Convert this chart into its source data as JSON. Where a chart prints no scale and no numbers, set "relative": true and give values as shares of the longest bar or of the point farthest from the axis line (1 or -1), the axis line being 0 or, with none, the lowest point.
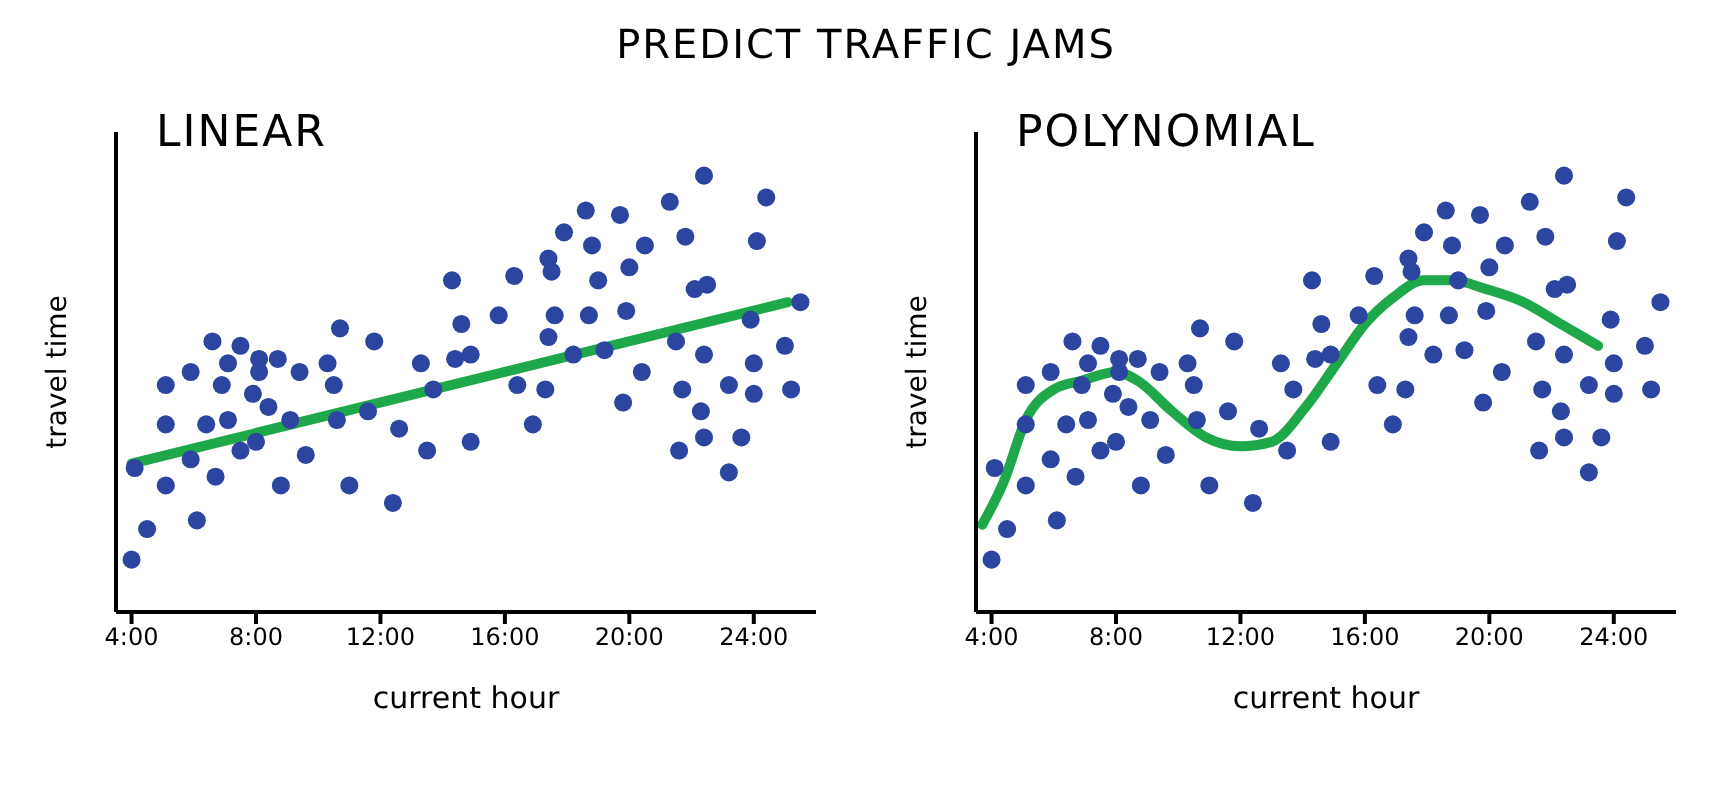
{
  "chart_data": [
    {
      "type": "scatter",
      "title": "LINEAR",
      "annotations": [
        "PREDICT TRAFFIC JAMS"
      ],
      "xlabel": "current hour",
      "ylabel": "travel time",
      "relative": true,
      "grid": false,
      "xlim": [
        3.5,
        26
      ],
      "xticks": [
        {
          "value": 4,
          "label": "4:00"
        },
        {
          "value": 8,
          "label": "8:00"
        },
        {
          "value": 12,
          "label": "12:00"
        },
        {
          "value": 16,
          "label": "16:00"
        },
        {
          "value": 20,
          "label": "20:00"
        },
        {
          "value": 24,
          "label": "24:00"
        }
      ],
      "series": [
        {
          "marker": "circle",
          "color": "#2b45a0",
          "x": [
            4.0,
            4.1,
            4.5,
            5.1,
            5.1,
            5.1,
            5.9,
            5.9,
            6.1,
            6.4,
            6.6,
            6.7,
            6.9,
            7.1,
            7.1,
            7.5,
            7.5,
            7.9,
            8.0,
            8.1,
            8.1,
            8.4,
            8.7,
            8.8,
            9.1,
            9.4,
            9.6,
            10.3,
            10.5,
            10.6,
            10.7,
            11.0,
            11.6,
            11.8,
            12.4,
            12.6,
            13.3,
            13.5,
            13.7,
            14.3,
            14.4,
            14.6,
            14.9,
            14.9,
            15.8,
            16.3,
            16.4,
            16.9,
            17.3,
            17.4,
            17.4,
            17.5,
            17.6,
            17.9,
            18.2,
            18.6,
            18.7,
            18.8,
            19.0,
            19.2,
            19.7,
            19.8,
            19.9,
            20.0,
            20.4,
            20.5,
            21.3,
            21.5,
            21.6,
            21.7,
            21.8,
            22.1,
            22.3,
            22.4,
            22.4,
            22.5,
            22.4,
            23.2,
            23.2,
            23.6,
            23.9,
            24.0,
            24.0,
            24.1,
            24.4,
            25.0,
            25.2,
            25.5
          ],
          "values": [
            0.12,
            0.33,
            0.19,
            0.52,
            0.43,
            0.29,
            0.35,
            0.55,
            0.21,
            0.43,
            0.62,
            0.31,
            0.52,
            0.57,
            0.44,
            0.37,
            0.61,
            0.5,
            0.39,
            0.58,
            0.55,
            0.47,
            0.58,
            0.29,
            0.44,
            0.55,
            0.36,
            0.57,
            0.52,
            0.44,
            0.65,
            0.29,
            0.46,
            0.62,
            0.25,
            0.42,
            0.57,
            0.37,
            0.51,
            0.76,
            0.58,
            0.66,
            0.39,
            0.59,
            0.68,
            0.77,
            0.52,
            0.43,
            0.51,
            0.63,
            0.81,
            0.78,
            0.68,
            0.87,
            0.59,
            0.92,
            0.68,
            0.84,
            0.76,
            0.6,
            0.91,
            0.48,
            0.69,
            0.79,
            0.55,
            0.84,
            0.94,
            0.62,
            0.37,
            0.51,
            0.86,
            0.74,
            0.46,
            0.4,
            1.0,
            0.75,
            0.59,
            0.52,
            0.32,
            0.4,
            0.67,
            0.57,
            0.5,
            0.85,
            0.95,
            0.61,
            0.51,
            0.71
          ]
        },
        {
          "type": "line",
          "color": "#1fa84a",
          "x": [
            4.0,
            25.1
          ],
          "values": [
            0.34,
            0.71
          ]
        }
      ]
    },
    {
      "type": "scatter",
      "title": "POLYNOMIAL",
      "xlabel": "current hour",
      "ylabel": "travel time",
      "relative": true,
      "grid": false,
      "xlim": [
        3.5,
        26
      ],
      "xticks": [
        {
          "value": 4,
          "label": "4:00"
        },
        {
          "value": 8,
          "label": "8:00"
        },
        {
          "value": 12,
          "label": "12:00"
        },
        {
          "value": 16,
          "label": "16:00"
        },
        {
          "value": 20,
          "label": "20:00"
        },
        {
          "value": 24,
          "label": "24:00"
        }
      ],
      "series": [
        {
          "marker": "circle",
          "color": "#2b45a0",
          "x": [
            4.0,
            4.1,
            4.5,
            5.1,
            5.1,
            5.1,
            5.9,
            5.9,
            6.1,
            6.4,
            6.6,
            6.7,
            6.9,
            7.1,
            7.1,
            7.5,
            7.5,
            7.9,
            8.0,
            8.1,
            8.1,
            8.4,
            8.7,
            8.8,
            9.1,
            9.4,
            9.6,
            10.3,
            10.5,
            10.6,
            10.7,
            11.0,
            11.6,
            11.8,
            12.4,
            12.6,
            13.3,
            13.5,
            13.7,
            14.3,
            14.4,
            14.6,
            14.9,
            14.9,
            15.8,
            16.3,
            16.4,
            16.9,
            17.3,
            17.4,
            17.4,
            17.5,
            17.6,
            17.9,
            18.2,
            18.6,
            18.7,
            18.8,
            19.0,
            19.2,
            19.7,
            19.8,
            19.9,
            20.0,
            20.4,
            20.5,
            21.3,
            21.5,
            21.6,
            21.7,
            21.8,
            22.1,
            22.3,
            22.4,
            22.4,
            22.5,
            22.4,
            23.2,
            23.2,
            23.6,
            23.9,
            24.0,
            24.0,
            24.1,
            24.4,
            25.0,
            25.2,
            25.5
          ],
          "values": [
            0.12,
            0.33,
            0.19,
            0.52,
            0.43,
            0.29,
            0.35,
            0.55,
            0.21,
            0.43,
            0.62,
            0.31,
            0.52,
            0.57,
            0.44,
            0.37,
            0.61,
            0.5,
            0.39,
            0.58,
            0.55,
            0.47,
            0.58,
            0.29,
            0.44,
            0.55,
            0.36,
            0.57,
            0.52,
            0.44,
            0.65,
            0.29,
            0.46,
            0.62,
            0.25,
            0.42,
            0.57,
            0.37,
            0.51,
            0.76,
            0.58,
            0.66,
            0.39,
            0.59,
            0.68,
            0.77,
            0.52,
            0.43,
            0.51,
            0.63,
            0.81,
            0.78,
            0.68,
            0.87,
            0.59,
            0.92,
            0.68,
            0.84,
            0.76,
            0.6,
            0.91,
            0.48,
            0.69,
            0.79,
            0.55,
            0.84,
            0.94,
            0.62,
            0.37,
            0.51,
            0.86,
            0.74,
            0.46,
            0.4,
            1.0,
            0.75,
            0.59,
            0.52,
            0.32,
            0.4,
            0.67,
            0.57,
            0.5,
            0.85,
            0.95,
            0.61,
            0.51,
            0.71
          ]
        },
        {
          "type": "line",
          "color": "#1fa84a",
          "x": [
            3.7,
            4.4,
            5.1,
            6.0,
            6.9,
            8.0,
            8.7,
            9.8,
            10.9,
            12.0,
            13.0,
            14.1,
            15.1,
            16.0,
            16.9,
            17.9,
            18.8,
            19.9,
            21.1,
            22.3,
            23.5
          ],
          "values": [
            0.2,
            0.3,
            0.44,
            0.51,
            0.53,
            0.55,
            0.53,
            0.46,
            0.4,
            0.38,
            0.39,
            0.47,
            0.57,
            0.66,
            0.72,
            0.76,
            0.76,
            0.74,
            0.71,
            0.66,
            0.61
          ]
        }
      ]
    }
  ]
}
